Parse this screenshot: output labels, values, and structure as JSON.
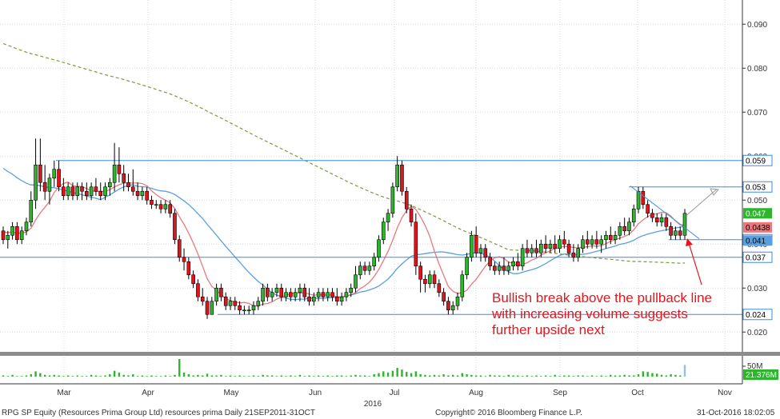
{
  "chart_data": {
    "type": "candlestick",
    "grid": true,
    "y_axis_side": "right",
    "ylim": [
      0.0155,
      0.0955
    ],
    "y_ticks": [
      "0.020",
      "0.030",
      "0.040",
      "0.050",
      "0.060",
      "0.070",
      "0.080",
      "0.090"
    ],
    "x_month_labels": [
      "Mar",
      "Apr",
      "May",
      "Jun",
      "Jul",
      "Aug",
      "Sep",
      "Oct",
      "Nov"
    ],
    "year_label": "2016",
    "candles": [
      [
        0.043,
        0.044,
        0.04,
        0.041
      ],
      [
        0.041,
        0.043,
        0.039,
        0.042
      ],
      [
        0.042,
        0.045,
        0.041,
        0.044
      ],
      [
        0.044,
        0.045,
        0.04,
        0.041
      ],
      [
        0.041,
        0.044,
        0.04,
        0.043
      ],
      [
        0.043,
        0.046,
        0.042,
        0.045
      ],
      [
        0.045,
        0.052,
        0.044,
        0.05
      ],
      [
        0.05,
        0.064,
        0.048,
        0.058
      ],
      [
        0.058,
        0.064,
        0.052,
        0.054
      ],
      [
        0.054,
        0.058,
        0.05,
        0.052
      ],
      [
        0.052,
        0.056,
        0.049,
        0.055
      ],
      [
        0.055,
        0.059,
        0.053,
        0.057
      ],
      [
        0.057,
        0.059,
        0.052,
        0.053
      ],
      [
        0.053,
        0.055,
        0.05,
        0.051
      ],
      [
        0.051,
        0.054,
        0.05,
        0.053
      ],
      [
        0.053,
        0.054,
        0.05,
        0.051
      ],
      [
        0.051,
        0.054,
        0.05,
        0.053
      ],
      [
        0.053,
        0.054,
        0.05,
        0.052
      ],
      [
        0.052,
        0.054,
        0.05,
        0.051
      ],
      [
        0.051,
        0.054,
        0.05,
        0.053
      ],
      [
        0.053,
        0.055,
        0.051,
        0.052
      ],
      [
        0.052,
        0.054,
        0.05,
        0.051
      ],
      [
        0.051,
        0.054,
        0.05,
        0.053
      ],
      [
        0.053,
        0.055,
        0.051,
        0.054
      ],
      [
        0.054,
        0.063,
        0.052,
        0.058
      ],
      [
        0.058,
        0.062,
        0.054,
        0.056
      ],
      [
        0.056,
        0.058,
        0.052,
        0.054
      ],
      [
        0.054,
        0.056,
        0.052,
        0.053
      ],
      [
        0.053,
        0.057,
        0.051,
        0.052
      ],
      [
        0.052,
        0.054,
        0.05,
        0.051
      ],
      [
        0.051,
        0.053,
        0.05,
        0.052
      ],
      [
        0.052,
        0.053,
        0.049,
        0.05
      ],
      [
        0.05,
        0.051,
        0.048,
        0.049
      ],
      [
        0.049,
        0.05,
        0.048,
        0.049
      ],
      [
        0.049,
        0.05,
        0.047,
        0.048
      ],
      [
        0.048,
        0.05,
        0.047,
        0.049
      ],
      [
        0.049,
        0.05,
        0.046,
        0.047
      ],
      [
        0.047,
        0.048,
        0.04,
        0.041
      ],
      [
        0.041,
        0.042,
        0.036,
        0.037
      ],
      [
        0.037,
        0.039,
        0.034,
        0.036
      ],
      [
        0.036,
        0.037,
        0.032,
        0.033
      ],
      [
        0.033,
        0.034,
        0.03,
        0.031
      ],
      [
        0.031,
        0.032,
        0.027,
        0.028
      ],
      [
        0.028,
        0.03,
        0.026,
        0.027
      ],
      [
        0.027,
        0.028,
        0.023,
        0.024
      ],
      [
        0.024,
        0.028,
        0.024,
        0.027
      ],
      [
        0.027,
        0.031,
        0.026,
        0.03
      ],
      [
        0.03,
        0.031,
        0.027,
        0.028
      ],
      [
        0.028,
        0.029,
        0.025,
        0.026
      ],
      [
        0.026,
        0.028,
        0.025,
        0.027
      ],
      [
        0.027,
        0.028,
        0.025,
        0.026
      ],
      [
        0.026,
        0.027,
        0.024,
        0.025
      ],
      [
        0.025,
        0.026,
        0.024,
        0.025
      ],
      [
        0.025,
        0.026,
        0.024,
        0.025
      ],
      [
        0.025,
        0.027,
        0.024,
        0.026
      ],
      [
        0.026,
        0.028,
        0.025,
        0.027
      ],
      [
        0.027,
        0.031,
        0.026,
        0.03
      ],
      [
        0.03,
        0.031,
        0.027,
        0.028
      ],
      [
        0.028,
        0.03,
        0.027,
        0.029
      ],
      [
        0.029,
        0.031,
        0.028,
        0.03
      ],
      [
        0.03,
        0.031,
        0.027,
        0.028
      ],
      [
        0.028,
        0.03,
        0.027,
        0.029
      ],
      [
        0.029,
        0.03,
        0.027,
        0.028
      ],
      [
        0.028,
        0.03,
        0.027,
        0.029
      ],
      [
        0.029,
        0.031,
        0.027,
        0.03
      ],
      [
        0.03,
        0.031,
        0.027,
        0.028
      ],
      [
        0.028,
        0.03,
        0.026,
        0.027
      ],
      [
        0.027,
        0.029,
        0.026,
        0.028
      ],
      [
        0.028,
        0.03,
        0.027,
        0.029
      ],
      [
        0.029,
        0.03,
        0.027,
        0.028
      ],
      [
        0.028,
        0.03,
        0.027,
        0.029
      ],
      [
        0.029,
        0.03,
        0.027,
        0.028
      ],
      [
        0.028,
        0.03,
        0.026,
        0.027
      ],
      [
        0.027,
        0.029,
        0.026,
        0.028
      ],
      [
        0.028,
        0.03,
        0.027,
        0.029
      ],
      [
        0.029,
        0.031,
        0.028,
        0.03
      ],
      [
        0.03,
        0.035,
        0.029,
        0.033
      ],
      [
        0.033,
        0.036,
        0.032,
        0.035
      ],
      [
        0.035,
        0.036,
        0.033,
        0.034
      ],
      [
        0.034,
        0.036,
        0.033,
        0.035
      ],
      [
        0.035,
        0.038,
        0.034,
        0.037
      ],
      [
        0.037,
        0.042,
        0.036,
        0.041
      ],
      [
        0.041,
        0.046,
        0.04,
        0.045
      ],
      [
        0.045,
        0.048,
        0.043,
        0.047
      ],
      [
        0.047,
        0.054,
        0.046,
        0.053
      ],
      [
        0.053,
        0.06,
        0.052,
        0.058
      ],
      [
        0.058,
        0.059,
        0.051,
        0.052
      ],
      [
        0.052,
        0.053,
        0.047,
        0.048
      ],
      [
        0.048,
        0.049,
        0.044,
        0.045
      ],
      [
        0.045,
        0.047,
        0.033,
        0.035
      ],
      [
        0.035,
        0.036,
        0.029,
        0.032
      ],
      [
        0.032,
        0.033,
        0.029,
        0.031
      ],
      [
        0.031,
        0.034,
        0.03,
        0.033
      ],
      [
        0.033,
        0.034,
        0.03,
        0.031
      ],
      [
        0.031,
        0.032,
        0.028,
        0.029
      ],
      [
        0.029,
        0.03,
        0.026,
        0.027
      ],
      [
        0.027,
        0.028,
        0.024,
        0.025
      ],
      [
        0.025,
        0.027,
        0.024,
        0.026
      ],
      [
        0.026,
        0.029,
        0.025,
        0.028
      ],
      [
        0.028,
        0.034,
        0.027,
        0.033
      ],
      [
        0.033,
        0.038,
        0.032,
        0.037
      ],
      [
        0.037,
        0.043,
        0.036,
        0.042
      ],
      [
        0.042,
        0.044,
        0.037,
        0.038
      ],
      [
        0.038,
        0.04,
        0.036,
        0.039
      ],
      [
        0.039,
        0.04,
        0.036,
        0.037
      ],
      [
        0.037,
        0.038,
        0.034,
        0.035
      ],
      [
        0.035,
        0.036,
        0.033,
        0.034
      ],
      [
        0.034,
        0.036,
        0.033,
        0.035
      ],
      [
        0.035,
        0.037,
        0.033,
        0.034
      ],
      [
        0.034,
        0.036,
        0.033,
        0.035
      ],
      [
        0.035,
        0.037,
        0.034,
        0.036
      ],
      [
        0.036,
        0.038,
        0.034,
        0.035
      ],
      [
        0.035,
        0.04,
        0.034,
        0.039
      ],
      [
        0.039,
        0.041,
        0.037,
        0.038
      ],
      [
        0.038,
        0.04,
        0.037,
        0.039
      ],
      [
        0.039,
        0.041,
        0.037,
        0.038
      ],
      [
        0.038,
        0.041,
        0.037,
        0.04
      ],
      [
        0.04,
        0.042,
        0.038,
        0.039
      ],
      [
        0.039,
        0.041,
        0.038,
        0.04
      ],
      [
        0.04,
        0.042,
        0.038,
        0.039
      ],
      [
        0.039,
        0.042,
        0.038,
        0.041
      ],
      [
        0.041,
        0.043,
        0.039,
        0.04
      ],
      [
        0.04,
        0.041,
        0.037,
        0.038
      ],
      [
        0.038,
        0.04,
        0.036,
        0.037
      ],
      [
        0.037,
        0.04,
        0.036,
        0.039
      ],
      [
        0.039,
        0.042,
        0.038,
        0.041
      ],
      [
        0.041,
        0.043,
        0.039,
        0.04
      ],
      [
        0.04,
        0.042,
        0.039,
        0.041
      ],
      [
        0.041,
        0.043,
        0.039,
        0.04
      ],
      [
        0.04,
        0.042,
        0.038,
        0.041
      ],
      [
        0.041,
        0.043,
        0.039,
        0.042
      ],
      [
        0.042,
        0.044,
        0.04,
        0.041
      ],
      [
        0.041,
        0.043,
        0.04,
        0.042
      ],
      [
        0.042,
        0.045,
        0.041,
        0.044
      ],
      [
        0.044,
        0.046,
        0.042,
        0.043
      ],
      [
        0.043,
        0.046,
        0.042,
        0.045
      ],
      [
        0.045,
        0.049,
        0.044,
        0.048
      ],
      [
        0.048,
        0.053,
        0.047,
        0.052
      ],
      [
        0.052,
        0.053,
        0.048,
        0.049
      ],
      [
        0.049,
        0.05,
        0.046,
        0.047
      ],
      [
        0.047,
        0.048,
        0.045,
        0.046
      ],
      [
        0.046,
        0.047,
        0.044,
        0.045
      ],
      [
        0.045,
        0.047,
        0.044,
        0.046
      ],
      [
        0.046,
        0.047,
        0.043,
        0.044
      ],
      [
        0.044,
        0.045,
        0.041,
        0.042
      ],
      [
        0.042,
        0.044,
        0.041,
        0.043
      ],
      [
        0.043,
        0.044,
        0.041,
        0.042
      ],
      [
        0.042,
        0.048,
        0.041,
        0.047
      ]
    ],
    "volume_max_ticks": "50M",
    "volume_last": "21.376M",
    "volumes": [
      2,
      1,
      3,
      1,
      1,
      2,
      4,
      9,
      6,
      3,
      2,
      3,
      2,
      1,
      2,
      1,
      2,
      1,
      1,
      3,
      2,
      1,
      2,
      4,
      10,
      7,
      3,
      2,
      4,
      1,
      2,
      1,
      2,
      1,
      1,
      2,
      1,
      3,
      30,
      7,
      4,
      2,
      3,
      2,
      5,
      2,
      2,
      3,
      1,
      2,
      1,
      2,
      1,
      1,
      2,
      1,
      3,
      2,
      2,
      1,
      2,
      1,
      2,
      1,
      3,
      1,
      2,
      1,
      2,
      1,
      2,
      1,
      2,
      2,
      1,
      2,
      3,
      2,
      2,
      1,
      4,
      6,
      9,
      7,
      10,
      15,
      12,
      8,
      6,
      9,
      4,
      3,
      2,
      3,
      2,
      4,
      2,
      3,
      2,
      6,
      4,
      3,
      2,
      2,
      1,
      3,
      2,
      2,
      1,
      3,
      2,
      2,
      1,
      2,
      1,
      2,
      1,
      2,
      1,
      3,
      1,
      2,
      2,
      1,
      2,
      2,
      1,
      2,
      1,
      2,
      1,
      3,
      2,
      2,
      3,
      2,
      2,
      4,
      9,
      8,
      6,
      5,
      3,
      2,
      4,
      3,
      2,
      20
    ],
    "moving_averages": [
      {
        "color": "#e8797d",
        "values_note": ""
      },
      {
        "color": "#5aa0e0"
      },
      {
        "color": "#7a9a3a",
        "style": "dashed"
      }
    ],
    "horizontal_levels": [
      {
        "label": "0.059",
        "value": 0.059
      },
      {
        "label": "0.053",
        "value": 0.053
      },
      {
        "label": "0.041",
        "value": 0.041
      },
      {
        "label": "0.037",
        "value": 0.037
      },
      {
        "label": "0.024",
        "value": 0.024
      }
    ],
    "price_tags": [
      {
        "label": "0.047",
        "value": 0.047,
        "bg": "#2db52d",
        "fg": "#ffffff"
      },
      {
        "label": "0.0438",
        "value": 0.0438,
        "bg": "#e8797d",
        "fg": "#000000"
      },
      {
        "label": "0.041",
        "value": 0.0408,
        "bg": "#5aa0e0",
        "fg": "#000000"
      }
    ],
    "annotation": [
      "Bullish break above the pullback line",
      "with increasing volume suggests",
      "further upside next"
    ]
  },
  "footer": {
    "left": "RPG SP Equity (Resources Prima Group Ltd) resources prima  Daily 21SEP2011-31OCT",
    "center": "Copyright© 2016 Bloomberg Finance L.P.",
    "right": "31-Oct-2016 18:02:05"
  },
  "colors": {
    "up": "#2db52d",
    "down": "#e0141c",
    "level_line": "#3a8ee0",
    "grid": "#d9d9d9",
    "annotation": "#e8141c"
  }
}
